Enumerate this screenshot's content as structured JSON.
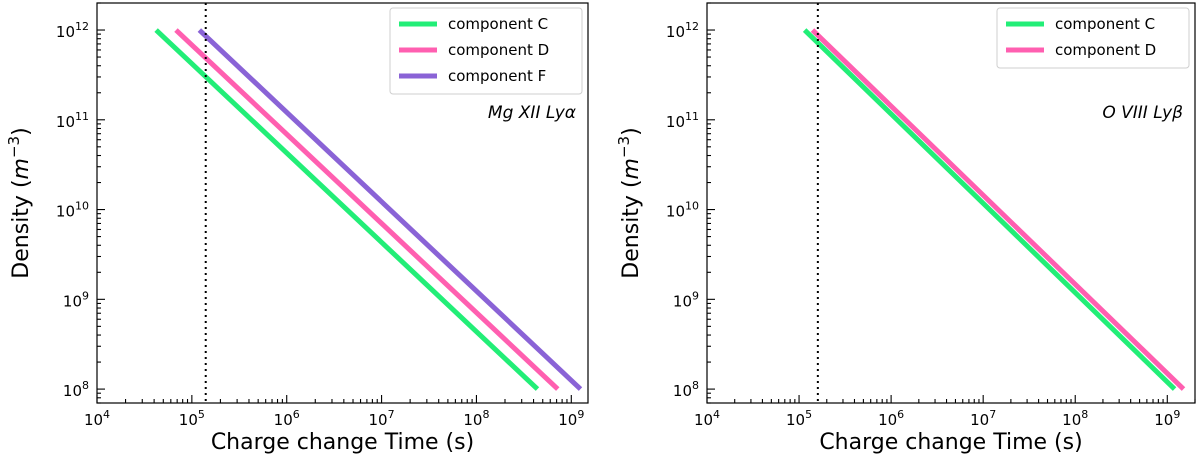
{
  "chart_data": [
    {
      "type": "line",
      "xscale": "log",
      "yscale": "log",
      "xlabel": "Charge change Time (s)",
      "ylabel_text": "Density (",
      "ylabel_unit": "m",
      "ylabel_exp": "−3",
      "ylabel_close": ")",
      "xlim": [
        10000,
        1500000000
      ],
      "ylim": [
        70000000,
        2000000000000
      ],
      "annotation": "Mg XII Lyα",
      "legend_position": "top-right",
      "vline_x": 140000,
      "x_ticks": [
        {
          "base": "10",
          "exp": "4",
          "value": 10000
        },
        {
          "base": "10",
          "exp": "5",
          "value": 100000
        },
        {
          "base": "10",
          "exp": "6",
          "value": 1000000
        },
        {
          "base": "10",
          "exp": "7",
          "value": 10000000
        },
        {
          "base": "10",
          "exp": "8",
          "value": 100000000
        },
        {
          "base": "10",
          "exp": "9",
          "value": 1000000000
        }
      ],
      "y_ticks": [
        {
          "base": "10",
          "exp": "8",
          "value": 100000000
        },
        {
          "base": "10",
          "exp": "9",
          "value": 1000000000
        },
        {
          "base": "10",
          "exp": "10",
          "value": 10000000000
        },
        {
          "base": "10",
          "exp": "11",
          "value": 100000000000
        },
        {
          "base": "10",
          "exp": "12",
          "value": 1000000000000
        }
      ],
      "series": [
        {
          "name": "component C",
          "color": "#22ee77",
          "x": [
            42000,
            440000000
          ],
          "y": [
            1000000000000,
            100000000
          ]
        },
        {
          "name": "component D",
          "color": "#ff5fb0",
          "x": [
            68000,
            720000000
          ],
          "y": [
            1000000000000,
            100000000
          ]
        },
        {
          "name": "component F",
          "color": "#8a63d6",
          "x": [
            120000,
            1250000000
          ],
          "y": [
            1000000000000,
            100000000
          ]
        }
      ]
    },
    {
      "type": "line",
      "xscale": "log",
      "yscale": "log",
      "xlabel": "Charge change Time (s)",
      "ylabel_text": "Density (",
      "ylabel_unit": "m",
      "ylabel_exp": "−3",
      "ylabel_close": ")",
      "xlim": [
        10000,
        2000000000
      ],
      "ylim": [
        70000000,
        2000000000000
      ],
      "annotation": "O VIII Lyβ",
      "legend_position": "top-right",
      "vline_x": 160000,
      "x_ticks": [
        {
          "base": "10",
          "exp": "4",
          "value": 10000
        },
        {
          "base": "10",
          "exp": "5",
          "value": 100000
        },
        {
          "base": "10",
          "exp": "6",
          "value": 1000000
        },
        {
          "base": "10",
          "exp": "7",
          "value": 10000000
        },
        {
          "base": "10",
          "exp": "8",
          "value": 100000000
        },
        {
          "base": "10",
          "exp": "9",
          "value": 1000000000
        }
      ],
      "y_ticks": [
        {
          "base": "10",
          "exp": "8",
          "value": 100000000
        },
        {
          "base": "10",
          "exp": "9",
          "value": 1000000000
        },
        {
          "base": "10",
          "exp": "10",
          "value": 10000000000
        },
        {
          "base": "10",
          "exp": "11",
          "value": 100000000000
        },
        {
          "base": "10",
          "exp": "12",
          "value": 1000000000000
        }
      ],
      "series": [
        {
          "name": "component C",
          "color": "#22ee77",
          "x": [
            115000,
            1200000000
          ],
          "y": [
            1000000000000,
            100000000
          ]
        },
        {
          "name": "component D",
          "color": "#ff5fb0",
          "x": [
            140000,
            1500000000
          ],
          "y": [
            1000000000000,
            100000000
          ]
        }
      ]
    }
  ]
}
